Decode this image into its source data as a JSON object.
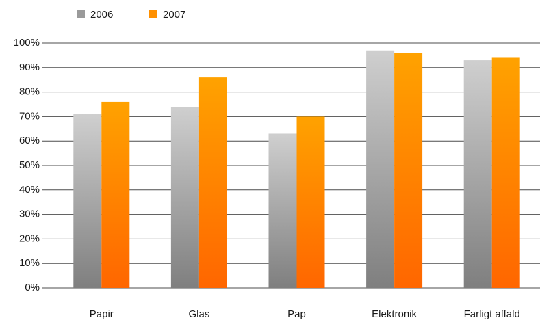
{
  "chart_data": {
    "type": "bar",
    "categories": [
      "Papir",
      "Glas",
      "Pap",
      "Elektronik",
      "Farligt affald"
    ],
    "series": [
      {
        "name": "2006",
        "color": "#9a9a9a",
        "values": [
          71,
          74,
          63,
          97,
          93
        ]
      },
      {
        "name": "2007",
        "color": "#ff9000",
        "values": [
          76,
          86,
          70,
          96,
          94
        ]
      }
    ],
    "ylim": [
      0,
      100
    ],
    "yticks": [
      {
        "value": 0,
        "label": "0%"
      },
      {
        "value": 10,
        "label": "10%"
      },
      {
        "value": 20,
        "label": "20%"
      },
      {
        "value": 30,
        "label": "30%"
      },
      {
        "value": 40,
        "label": "40%"
      },
      {
        "value": 50,
        "label": "50%"
      },
      {
        "value": 60,
        "label": "60%"
      },
      {
        "value": 70,
        "label": "70%"
      },
      {
        "value": 80,
        "label": "80%"
      },
      {
        "value": 90,
        "label": "90%"
      },
      {
        "value": 100,
        "label": "100%"
      }
    ],
    "grid": true,
    "legend": "top"
  }
}
